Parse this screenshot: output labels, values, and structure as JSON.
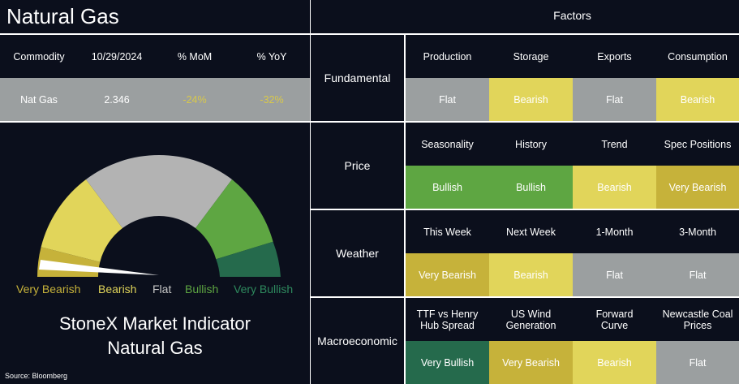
{
  "title": "Natural Gas",
  "factors_header": "Factors",
  "summary": {
    "headers": [
      "Commodity",
      "10/29/2024",
      "% MoM",
      "% YoY"
    ],
    "values": [
      "Nat Gas",
      "2.346",
      "-24%",
      "-32%"
    ]
  },
  "gauge": {
    "labels": [
      "Very Bearish",
      "Bearish",
      "Flat",
      "Bullish",
      "Very Bullish"
    ],
    "title_line1": "StoneX Market Indicator",
    "title_line2": "Natural Gas",
    "source": "Source: Bloomberg"
  },
  "factors": [
    {
      "category": "Fundamental",
      "items": [
        {
          "name": "Production",
          "value": "Flat"
        },
        {
          "name": "Storage",
          "value": "Bearish"
        },
        {
          "name": "Exports",
          "value": "Flat"
        },
        {
          "name": "Consumption",
          "value": "Bearish"
        }
      ]
    },
    {
      "category": "Price",
      "items": [
        {
          "name": "Seasonality",
          "value": "Bullish"
        },
        {
          "name": "History",
          "value": "Bullish"
        },
        {
          "name": "Trend",
          "value": "Bearish"
        },
        {
          "name": "Spec Positions",
          "value": "Very Bearish"
        }
      ]
    },
    {
      "category": "Weather",
      "items": [
        {
          "name": "This Week",
          "value": "Very Bearish"
        },
        {
          "name": "Next Week",
          "value": "Bearish"
        },
        {
          "name": "1-Month",
          "value": "Flat"
        },
        {
          "name": "3-Month",
          "value": "Flat"
        }
      ]
    },
    {
      "category": "Macroeconomic",
      "items": [
        {
          "name": "TTF vs Henry Hub Spread",
          "value": "Very Bullish"
        },
        {
          "name": "US Wind Generation",
          "value": "Very Bearish"
        },
        {
          "name": "Forward Curve",
          "value": "Bearish"
        },
        {
          "name": "Newcastle Coal Prices",
          "value": "Flat"
        }
      ]
    }
  ],
  "colors": {
    "background": "#0b0f1c",
    "flat": "#9b9fa0",
    "bearish": "#e1d55a",
    "very_bearish": "#c6b23a",
    "bullish": "#5ea642",
    "very_bullish": "#256a4c",
    "negative_text": "#d8c84a"
  }
}
